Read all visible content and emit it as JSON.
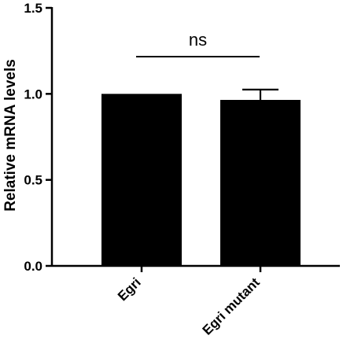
{
  "chart_data": {
    "type": "bar",
    "categories": [
      "Egri",
      "Egri mutant"
    ],
    "values": [
      1.0,
      0.965
    ],
    "error_upper": [
      0.0,
      0.06
    ],
    "ylabel": "Relative mRNA levels",
    "ylim": [
      0,
      1.5
    ],
    "yticks": [
      0.0,
      0.5,
      1.0,
      1.5
    ],
    "ytick_labels": [
      "0.0",
      "0.5",
      "1.0",
      "1.5"
    ],
    "bar_color": "#000000",
    "significance": {
      "label": "ns",
      "between": [
        0,
        1
      ],
      "y": 1.2
    }
  }
}
